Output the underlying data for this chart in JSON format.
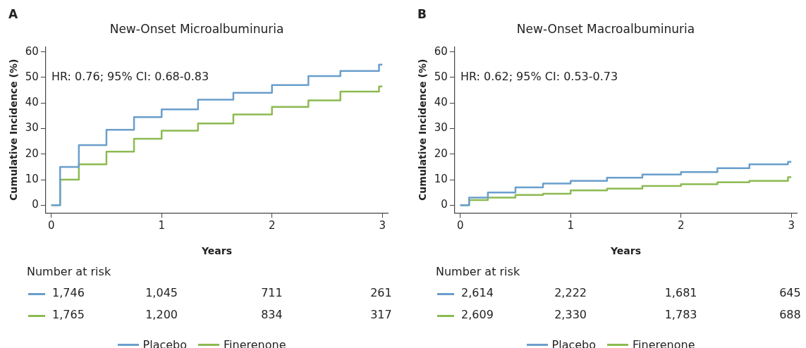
{
  "chart_data": [
    {
      "type": "step",
      "title": "New-Onset Microalbuminuria",
      "xlabel": "Years",
      "ylabel": "Cumulative Incidence (%)",
      "xlim": [
        -0.05,
        3.05
      ],
      "xticks": [
        0,
        1,
        2,
        3
      ],
      "ylim": [
        -3,
        62
      ],
      "yticks": [
        0,
        10,
        20,
        30,
        40,
        50,
        60
      ],
      "grid": false,
      "legend": "bottom",
      "series": [
        {
          "name": "Placebo",
          "color": "#6a9ecb",
          "x": [
            0,
            0.08,
            0.25,
            0.5,
            0.75,
            1.0,
            1.33,
            1.65,
            2.0,
            2.33,
            2.62,
            2.97,
            3.0
          ],
          "values": [
            0,
            15,
            23.5,
            29.5,
            34.5,
            37.5,
            41.3,
            44,
            47,
            50.5,
            52.5,
            55,
            55
          ]
        },
        {
          "name": "Finerenone",
          "color": "#8cba51",
          "x": [
            0,
            0.08,
            0.25,
            0.5,
            0.75,
            1.0,
            1.33,
            1.65,
            2.0,
            2.33,
            2.62,
            2.97,
            3.0
          ],
          "values": [
            0,
            10,
            16,
            21,
            26,
            29.2,
            32,
            35.5,
            38.5,
            41,
            44.5,
            46.5,
            46.5
          ]
        }
      ],
      "annotations": [
        "A",
        "HR: 0.76; 95% CI: 0.68-0.83",
        "Number at risk",
        "1,746",
        "1,045",
        "711",
        "261",
        "1,765",
        "1,200",
        "834",
        "317"
      ]
    },
    {
      "type": "step",
      "title": "New-Onset Macroalbuminuria",
      "xlabel": "Years",
      "ylabel": "Cumulative Incidence (%)",
      "xlim": [
        -0.05,
        3.05
      ],
      "xticks": [
        0,
        1,
        2,
        3
      ],
      "ylim": [
        -3,
        62
      ],
      "yticks": [
        0,
        10,
        20,
        30,
        40,
        50,
        60
      ],
      "grid": false,
      "legend": "bottom",
      "series": [
        {
          "name": "Placebo",
          "color": "#6a9ecb",
          "x": [
            0,
            0.08,
            0.25,
            0.5,
            0.75,
            1.0,
            1.33,
            1.65,
            2.0,
            2.33,
            2.62,
            2.97,
            3.0
          ],
          "values": [
            0,
            3,
            5,
            7,
            8.5,
            9.5,
            10.8,
            12,
            13,
            14.5,
            16,
            17,
            17
          ]
        },
        {
          "name": "Finerenone",
          "color": "#8cba51",
          "x": [
            0,
            0.08,
            0.25,
            0.5,
            0.75,
            1.0,
            1.33,
            1.65,
            2.0,
            2.33,
            2.62,
            2.97,
            3.0
          ],
          "values": [
            0,
            2,
            3,
            4,
            4.5,
            5.8,
            6.5,
            7.5,
            8.2,
            9,
            9.5,
            11,
            11
          ]
        }
      ],
      "annotations": [
        "B",
        "HR: 0.62; 95% CI: 0.53-0.73",
        "Number at risk",
        "2,614",
        "2,222",
        "1,681",
        "645",
        "2,609",
        "2,330",
        "1,783",
        "688"
      ]
    }
  ]
}
